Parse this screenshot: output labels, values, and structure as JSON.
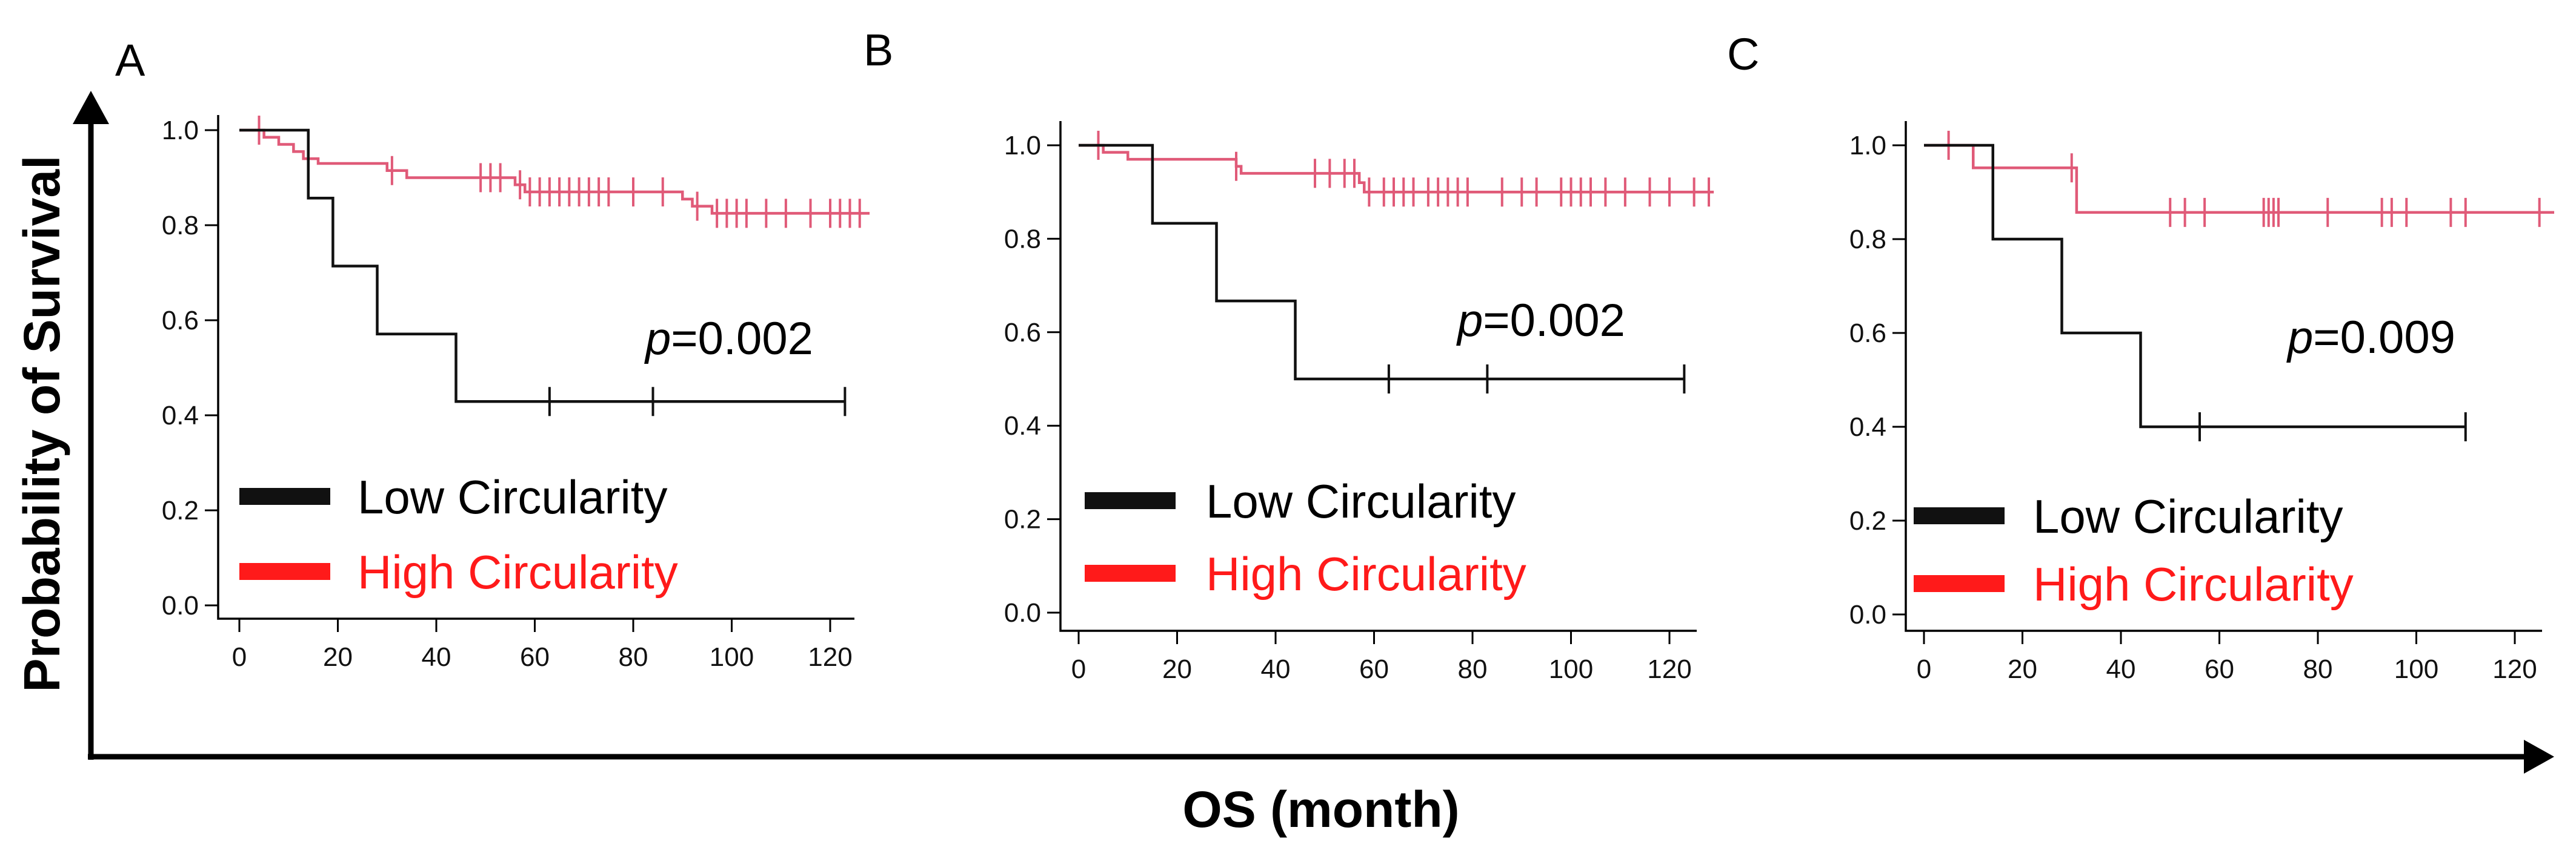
{
  "figure": {
    "y_title": "Probability of Survival",
    "x_title": "OS (month)"
  },
  "colors": {
    "low": "#111111",
    "high": "#e05a78",
    "high_legend": "#ff1a1a",
    "axis": "#000000"
  },
  "chart_data": [
    {
      "type": "line",
      "panel": "A",
      "xlabel": "OS (month)",
      "ylabel": "Probability of Survival",
      "xlim": [
        0,
        130
      ],
      "ylim": [
        0,
        1
      ],
      "xticks": [
        0,
        20,
        40,
        60,
        80,
        100,
        120
      ],
      "yticks": [
        0.0,
        0.2,
        0.4,
        0.6,
        0.8,
        1.0
      ],
      "ytick_labels": [
        "0.0",
        "0.2",
        "0.4",
        "0.6",
        "0.8",
        "1.0"
      ],
      "annotation": {
        "p_symbol": "p",
        "p_value": "=0.002"
      },
      "legend": [
        "Low Circularity",
        "High Circularity"
      ],
      "series": [
        {
          "name": "Low Circularity",
          "steps": [
            [
              0,
              1.0
            ],
            [
              14,
              0.857
            ],
            [
              19,
              0.714
            ],
            [
              28,
              0.571
            ],
            [
              44,
              0.429
            ],
            [
              123,
              0.429
            ]
          ],
          "censor": [
            63,
            84,
            123
          ]
        },
        {
          "name": "High Circularity",
          "steps": [
            [
              0,
              1.0
            ],
            [
              5,
              0.985
            ],
            [
              8,
              0.97
            ],
            [
              11,
              0.955
            ],
            [
              13,
              0.94
            ],
            [
              16,
              0.93
            ],
            [
              30,
              0.915
            ],
            [
              34,
              0.9
            ],
            [
              56,
              0.885
            ],
            [
              58,
              0.87
            ],
            [
              90,
              0.855
            ],
            [
              92,
              0.84
            ],
            [
              96,
              0.825
            ],
            [
              128,
              0.825
            ]
          ],
          "censor": [
            4,
            31,
            49,
            51,
            53,
            57,
            59,
            61,
            63,
            65,
            67,
            69,
            71,
            73,
            75,
            80,
            86,
            93,
            97,
            99,
            101,
            103,
            107,
            111,
            116,
            120,
            122,
            124,
            126
          ]
        }
      ]
    },
    {
      "type": "line",
      "panel": "B",
      "xlabel": "OS (month)",
      "ylabel": "Probability of Survival",
      "xlim": [
        0,
        130
      ],
      "ylim": [
        0,
        1
      ],
      "xticks": [
        0,
        20,
        40,
        60,
        80,
        100,
        120
      ],
      "yticks": [
        0.0,
        0.2,
        0.4,
        0.6,
        0.8,
        1.0
      ],
      "ytick_labels": [
        "0.0",
        "0.2",
        "0.4",
        "0.6",
        "0.8",
        "1.0"
      ],
      "annotation": {
        "p_symbol": "p",
        "p_value": "=0.002"
      },
      "legend": [
        "Low Circularity",
        "High Circularity"
      ],
      "series": [
        {
          "name": "Low Circularity",
          "steps": [
            [
              0,
              1.0
            ],
            [
              15,
              0.833
            ],
            [
              28,
              0.667
            ],
            [
              44,
              0.5
            ],
            [
              123,
              0.5
            ]
          ],
          "censor": [
            63,
            83,
            123
          ]
        },
        {
          "name": "High Circularity",
          "steps": [
            [
              0,
              1.0
            ],
            [
              5,
              0.985
            ],
            [
              10,
              0.97
            ],
            [
              32,
              0.955
            ],
            [
              33,
              0.94
            ],
            [
              57,
              0.92
            ],
            [
              58,
              0.9
            ],
            [
              129,
              0.9
            ]
          ],
          "censor": [
            4,
            32,
            48,
            51,
            54,
            56,
            59,
            62,
            64,
            66,
            68,
            71,
            73,
            75,
            77,
            79,
            86,
            90,
            93,
            98,
            100,
            102,
            104,
            107,
            111,
            116,
            120,
            125,
            128
          ]
        }
      ]
    },
    {
      "type": "line",
      "panel": "C",
      "xlabel": "OS (month)",
      "ylabel": "Probability of Survival",
      "xlim": [
        0,
        130
      ],
      "ylim": [
        0,
        1
      ],
      "xticks": [
        0,
        20,
        40,
        60,
        80,
        100,
        120
      ],
      "yticks": [
        0.0,
        0.2,
        0.4,
        0.6,
        0.8,
        1.0
      ],
      "ytick_labels": [
        "0.0",
        "0.2",
        "0.4",
        "0.6",
        "0.8",
        "1.0"
      ],
      "annotation": {
        "p_symbol": "p",
        "p_value": "=0.009"
      },
      "legend": [
        "Low Circularity",
        "High Circularity"
      ],
      "series": [
        {
          "name": "Low Circularity",
          "steps": [
            [
              0,
              1.0
            ],
            [
              14,
              0.8
            ],
            [
              28,
              0.6
            ],
            [
              44,
              0.4
            ],
            [
              110,
              0.4
            ]
          ],
          "censor": [
            56,
            110
          ]
        },
        {
          "name": "High Circularity",
          "steps": [
            [
              0,
              1.0
            ],
            [
              10,
              0.952
            ],
            [
              31,
              0.857
            ],
            [
              128,
              0.857
            ]
          ],
          "censor": [
            5,
            30,
            50,
            53,
            57,
            69,
            70,
            71,
            72,
            82,
            93,
            95,
            98,
            107,
            110,
            125
          ]
        }
      ]
    }
  ]
}
